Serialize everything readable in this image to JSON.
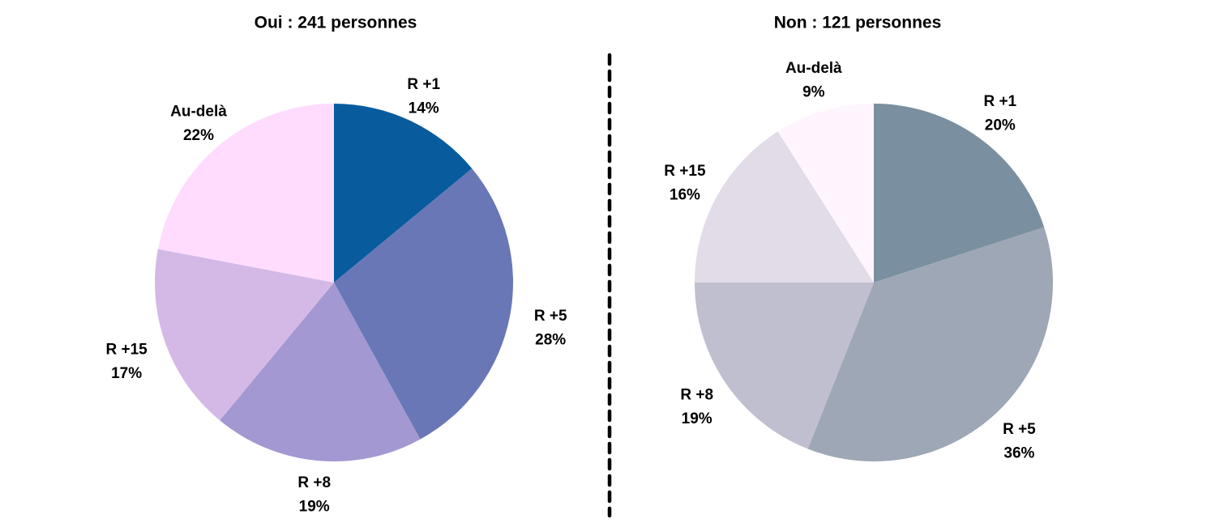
{
  "chart_data": [
    {
      "type": "pie",
      "title": "Oui : 241 personnes",
      "categories": [
        "R +1",
        "R +5",
        "R +8",
        "R +15",
        "Au-delà"
      ],
      "values": [
        14,
        28,
        19,
        17,
        22
      ],
      "value_labels": [
        "14%",
        "28%",
        "19%",
        "17%",
        "22%"
      ],
      "colors": [
        "#085c9e",
        "#6977b7",
        "#a398d1",
        "#d4b9e7",
        "#ffdcfe"
      ]
    },
    {
      "type": "pie",
      "title": "Non : 121 personnes",
      "categories": [
        "R +1",
        "R +5",
        "R +8",
        "R +15",
        "Au-delà"
      ],
      "values": [
        20,
        36,
        19,
        16,
        9
      ],
      "value_labels": [
        "20%",
        "36%",
        "19%",
        "16%",
        "9%"
      ],
      "colors": [
        "#7a8f9f",
        "#9ea7b6",
        "#c0bfcf",
        "#e2dbe8",
        "#fff5fe"
      ]
    }
  ],
  "separator": {
    "style": "dashed",
    "color": "#000000"
  }
}
